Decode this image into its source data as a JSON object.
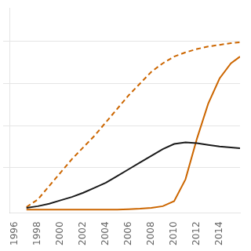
{
  "chart_data": {
    "type": "line",
    "x": [
      1997,
      1998,
      1999,
      2000,
      2001,
      2002,
      2003,
      2004,
      2005,
      2006,
      2007,
      2008,
      2009,
      2010,
      2011,
      2012,
      2013,
      2014,
      2015,
      2015.8
    ],
    "series": [
      {
        "color": "#1a1a1a",
        "line_style": "solid",
        "values": [
          1,
          2,
          3.5,
          5.5,
          7.5,
          10,
          13,
          16,
          20,
          24,
          28,
          32,
          36,
          39,
          40,
          39.5,
          38.5,
          37.5,
          37,
          36.5
        ]
      },
      {
        "color": "#cc6600",
        "line_style": "dashed",
        "values": [
          1.5,
          6,
          14,
          22,
          30,
          37,
          44,
          52,
          60,
          68,
          75,
          82,
          87,
          91,
          93.5,
          95.5,
          97,
          98,
          99,
          99.5
        ]
      },
      {
        "color": "#cc6600",
        "line_style": "solid",
        "values": [
          0,
          0,
          0,
          0,
          0,
          0,
          0,
          0,
          0,
          0.2,
          0.5,
          1,
          2,
          5,
          18,
          42,
          63,
          78,
          87,
          91
        ]
      }
    ],
    "xlim": [
      1995.5,
      2015.8
    ],
    "xticks": [
      1996,
      1998,
      2000,
      2002,
      2004,
      2006,
      2008,
      2010,
      2012,
      2014
    ],
    "ylim": [
      -2,
      120
    ],
    "yticks": [
      25,
      50,
      75,
      100
    ],
    "grid": "y",
    "tick_labels": "x"
  }
}
